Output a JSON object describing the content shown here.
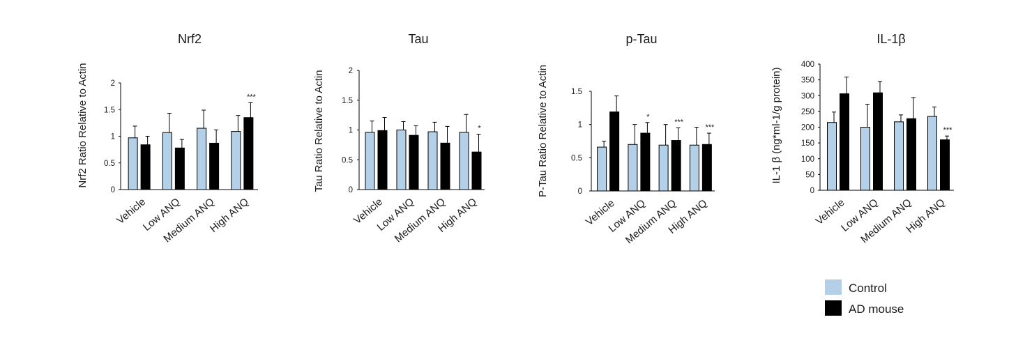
{
  "legend": [
    {
      "label": "Control",
      "color": "#b4cfe8"
    },
    {
      "label": "AD mouse",
      "color": "#000000"
    }
  ],
  "chart_data": [
    {
      "type": "bar",
      "title": "Nrf2",
      "ylabel": "Nrf2 Ratio Relative to Actin",
      "ylim": [
        0,
        2
      ],
      "yticks": [
        "0",
        "0.5",
        "1",
        "1.5",
        "2"
      ],
      "categories": [
        "Vehicle",
        "Low ANQ",
        "Medium ANQ",
        "High ANQ"
      ],
      "series": [
        {
          "name": "Control",
          "values": [
            0.97,
            1.07,
            1.15,
            1.09
          ],
          "errors": [
            0.22,
            0.36,
            0.34,
            0.3
          ]
        },
        {
          "name": "AD mouse",
          "values": [
            0.84,
            0.78,
            0.87,
            1.35
          ],
          "errors": [
            0.16,
            0.16,
            0.25,
            0.28
          ]
        }
      ],
      "annotations": [
        {
          "category_index": 3,
          "series_index": 1,
          "text": "***"
        }
      ]
    },
    {
      "type": "bar",
      "title": "Tau",
      "ylabel": "Tau Ratio Relative to Actin",
      "ylim": [
        0,
        2
      ],
      "yticks": [
        "0",
        "0.5",
        "1",
        "1.5",
        "2"
      ],
      "categories": [
        "Vehicle",
        "Low ANQ",
        "Medium ANQ",
        "High ANQ"
      ],
      "series": [
        {
          "name": "Control",
          "values": [
            0.96,
            1.0,
            0.97,
            0.96
          ],
          "errors": [
            0.19,
            0.14,
            0.16,
            0.3
          ]
        },
        {
          "name": "AD mouse",
          "values": [
            0.99,
            0.91,
            0.78,
            0.63
          ],
          "errors": [
            0.22,
            0.16,
            0.28,
            0.3
          ]
        }
      ],
      "annotations": [
        {
          "category_index": 3,
          "series_index": 1,
          "text": "*"
        }
      ]
    },
    {
      "type": "bar",
      "title": "p-Tau",
      "ylabel": "P-Tau Ratio Relative to Actin",
      "ylim": [
        0,
        1.5
      ],
      "yticks": [
        "0",
        "0.5",
        "1",
        "1.5"
      ],
      "categories": [
        "Vehicle",
        "Low ANQ",
        "Medium ANQ",
        "High ANQ"
      ],
      "series": [
        {
          "name": "Control",
          "values": [
            0.66,
            0.7,
            0.69,
            0.69
          ],
          "errors": [
            0.09,
            0.3,
            0.31,
            0.27
          ]
        },
        {
          "name": "AD mouse",
          "values": [
            1.19,
            0.87,
            0.76,
            0.7
          ],
          "errors": [
            0.24,
            0.16,
            0.19,
            0.17
          ]
        }
      ],
      "annotations": [
        {
          "category_index": 1,
          "series_index": 1,
          "text": "*"
        },
        {
          "category_index": 2,
          "series_index": 1,
          "text": "***"
        },
        {
          "category_index": 3,
          "series_index": 1,
          "text": "***"
        }
      ]
    },
    {
      "type": "bar",
      "title": "IL-1β",
      "ylabel": "IL-1 β (ng*ml-1/g protein)",
      "ylim": [
        0,
        400
      ],
      "yticks": [
        "0",
        "50",
        "100",
        "150",
        "200",
        "250",
        "300",
        "350",
        "400"
      ],
      "categories": [
        "Vehicle",
        "Low ANQ",
        "Medium ANQ",
        "High ANQ"
      ],
      "series": [
        {
          "name": "Control",
          "values": [
            215,
            200,
            217,
            234
          ],
          "errors": [
            33,
            73,
            22,
            30
          ]
        },
        {
          "name": "AD mouse",
          "values": [
            306,
            309,
            227,
            160
          ],
          "errors": [
            53,
            36,
            67,
            12
          ]
        }
      ],
      "annotations": [
        {
          "category_index": 3,
          "series_index": 1,
          "text": "***"
        }
      ]
    }
  ]
}
